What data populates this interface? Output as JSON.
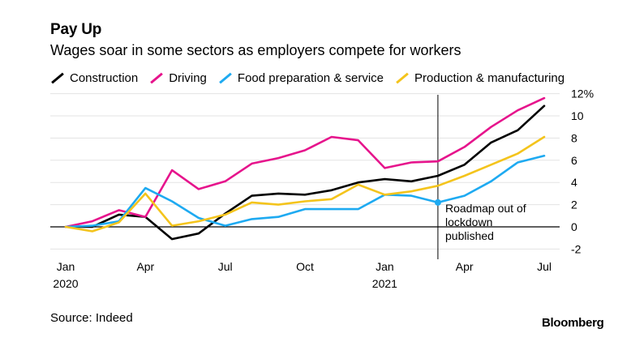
{
  "title": "Pay Up",
  "subtitle": "Wages soar in some sectors as employers compete for workers",
  "source": "Source: Indeed",
  "brand": "Bloomberg",
  "chart_data": {
    "type": "line",
    "title": "Pay Up",
    "subtitle": "Wages soar in some sectors as employers compete for workers",
    "x": [
      "2020-01",
      "2020-02",
      "2020-03",
      "2020-04",
      "2020-05",
      "2020-06",
      "2020-07",
      "2020-08",
      "2020-09",
      "2020-10",
      "2020-11",
      "2020-12",
      "2021-01",
      "2021-02",
      "2021-03",
      "2021-04",
      "2021-05",
      "2021-06",
      "2021-07"
    ],
    "x_ticks": [
      {
        "x": "2020-01",
        "label": "Jan",
        "sublabel": "2020"
      },
      {
        "x": "2020-04",
        "label": "Apr",
        "sublabel": ""
      },
      {
        "x": "2020-07",
        "label": "Jul",
        "sublabel": ""
      },
      {
        "x": "2020-10",
        "label": "Oct",
        "sublabel": ""
      },
      {
        "x": "2021-01",
        "label": "Jan",
        "sublabel": "2021"
      },
      {
        "x": "2021-04",
        "label": "Apr",
        "sublabel": ""
      },
      {
        "x": "2021-07",
        "label": "Jul",
        "sublabel": ""
      }
    ],
    "y_ticks": [
      {
        "value": 12,
        "label": "12%"
      },
      {
        "value": 10,
        "label": "10"
      },
      {
        "value": 8,
        "label": "8"
      },
      {
        "value": 6,
        "label": "6"
      },
      {
        "value": 4,
        "label": "4"
      },
      {
        "value": 2,
        "label": "2"
      },
      {
        "value": 0,
        "label": "0"
      },
      {
        "value": -2,
        "label": "-2"
      }
    ],
    "ylim": [
      -2,
      12
    ],
    "grid": true,
    "legend_position": "top",
    "series": [
      {
        "name": "Construction",
        "color": "#000000",
        "values": [
          0,
          0,
          1.1,
          0.9,
          -1.1,
          -0.6,
          1.2,
          2.8,
          3.0,
          2.9,
          3.3,
          4.0,
          4.3,
          4.1,
          4.6,
          5.6,
          7.6,
          8.7,
          10.9
        ]
      },
      {
        "name": "Driving",
        "color": "#e6148c",
        "values": [
          0,
          0.5,
          1.5,
          0.9,
          5.1,
          3.4,
          4.1,
          5.7,
          6.2,
          6.9,
          8.1,
          7.8,
          5.3,
          5.8,
          5.9,
          7.2,
          9.0,
          10.5,
          11.6
        ]
      },
      {
        "name": "Food preparation & service",
        "color": "#1eaaf1",
        "values": [
          0,
          0.1,
          0.5,
          3.5,
          2.3,
          0.8,
          0.1,
          0.7,
          0.9,
          1.6,
          1.6,
          1.6,
          2.9,
          2.8,
          2.2,
          2.8,
          4.1,
          5.8,
          6.4
        ]
      },
      {
        "name": "Production & manufacturing",
        "color": "#f4c41c",
        "values": [
          0,
          -0.4,
          0.4,
          3.0,
          0.1,
          0.5,
          1.1,
          2.2,
          2.0,
          2.3,
          2.5,
          3.8,
          2.9,
          3.2,
          3.7,
          4.6,
          5.6,
          6.6,
          8.1
        ]
      }
    ],
    "annotation": {
      "x": "2021-03",
      "lines": [
        "Roadmap out of",
        "lockdown",
        "published"
      ]
    }
  }
}
